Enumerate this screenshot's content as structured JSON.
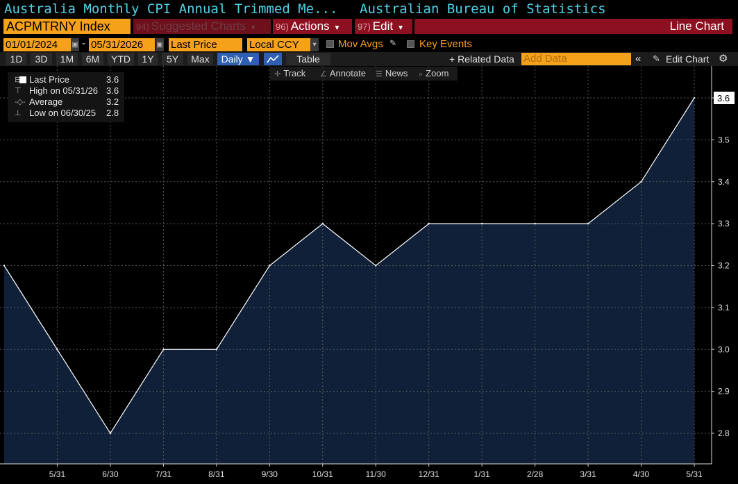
{
  "header": {
    "title": "Australia Monthly CPI Annual Trimmed Me...",
    "source": "Australian Bureau of Statistics"
  },
  "command_bar": {
    "ticker": "ACPMTRNY Index",
    "suggested_num": "94)",
    "suggested_label": "Suggested Charts",
    "actions_num": "96)",
    "actions_label": "Actions",
    "edit_num": "97)",
    "edit_label": "Edit",
    "chart_type": "Line Chart"
  },
  "options": {
    "start_date": "01/01/2024",
    "date_sep": "-",
    "end_date": "05/31/2026",
    "field": "Last Price",
    "currency": "Local CCY",
    "mov_avgs": "Mov Avgs",
    "key_events": "Key Events"
  },
  "range_bar": {
    "ranges": [
      "1D",
      "3D",
      "1M",
      "6M",
      "YTD",
      "1Y",
      "5Y",
      "Max"
    ],
    "frequency": "Daily ▼",
    "table": "Table",
    "related": "+ Related Data",
    "add_data_placeholder": "Add Data",
    "edit_chart": "Edit Chart"
  },
  "tools": {
    "track": "Track",
    "annotate": "Annotate",
    "news": "News",
    "zoom": "Zoom"
  },
  "legend": {
    "last_label": "Last Price",
    "last_value": "3.6",
    "high_label": "High on 05/31/26",
    "high_value": "3.6",
    "avg_label": "Average",
    "avg_value": "3.2",
    "low_label": "Low on 06/30/25",
    "low_value": "2.8"
  },
  "colors": {
    "accent": "#f6a11a",
    "title": "#4fd3e6",
    "area_fill": "#0f2038",
    "line": "#ffffff",
    "grid": "#5a5a5a"
  },
  "chart_data": {
    "type": "area",
    "title": "Australia Monthly CPI Annual Trimmed Me...",
    "x": [
      "4/30",
      "5/31",
      "6/30",
      "7/31",
      "8/31",
      "9/30",
      "10/31",
      "11/30",
      "12/31",
      "1/31",
      "2/28",
      "3/31",
      "4/30",
      "5/31"
    ],
    "x_tick_labels": [
      "5/31",
      "6/30",
      "7/31",
      "8/31",
      "9/30",
      "10/31",
      "11/30",
      "12/31",
      "1/31",
      "2/28",
      "3/31",
      "4/30",
      "5/31"
    ],
    "series": [
      {
        "values": [
          3.2,
          3.0,
          2.8,
          3.0,
          3.0,
          3.2,
          3.3,
          3.2,
          3.3,
          3.3,
          3.3,
          3.3,
          3.4,
          3.6
        ]
      }
    ],
    "y_ticks": [
      "2.8",
      "2.9",
      "3.0",
      "3.1",
      "3.2",
      "3.3",
      "3.4",
      "3.5",
      "3.6"
    ],
    "ylim": [
      2.7,
      3.7
    ],
    "last_value_label": "3.6",
    "grid": true,
    "y_axis_side": "right"
  }
}
